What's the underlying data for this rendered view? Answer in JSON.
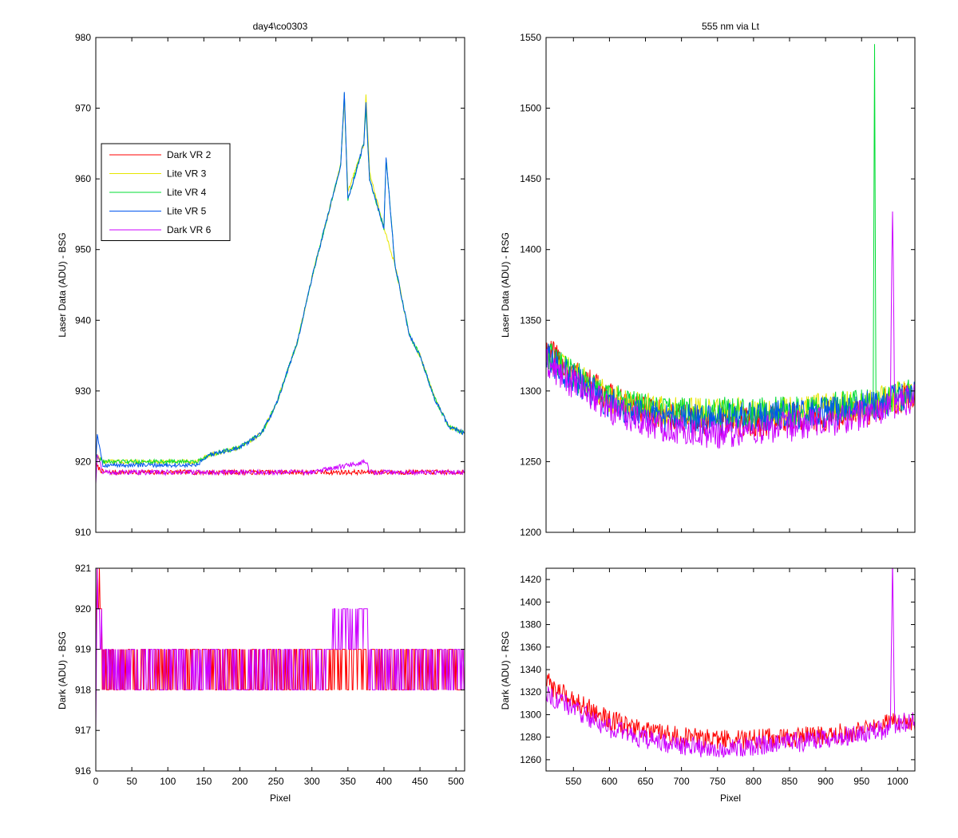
{
  "colors": {
    "dark_vr2": "#ff0000",
    "lite_vr3": "#e6e600",
    "lite_vr4": "#00dd33",
    "lite_vr5": "#0055ee",
    "dark_vr6": "#cc00ff"
  },
  "chart_data": [
    {
      "id": "top-left",
      "type": "line",
      "title": "day4\\co0303",
      "xlabel": "",
      "ylabel": "Laser Data (ADU) - BSG",
      "xlim": [
        0,
        512
      ],
      "ylim": [
        910,
        980
      ],
      "xticks": [
        0,
        50,
        100,
        150,
        200,
        250,
        300,
        350,
        400,
        450,
        500
      ],
      "yticks": [
        910,
        920,
        930,
        940,
        950,
        960,
        970,
        980
      ],
      "show_xtick_labels": false,
      "legend": {
        "position": "upper-left",
        "entries": [
          "Dark VR 2",
          "Lite VR 3",
          "Lite VR 4",
          "Lite VR 5",
          "Dark VR 6"
        ]
      },
      "series": [
        {
          "name": "Dark VR 2",
          "color_key": "dark_vr2",
          "noise": 0.7,
          "x": [
            0,
            10,
            60,
            120,
            200,
            300,
            400,
            450,
            480,
            512
          ],
          "y": [
            919.5,
            918.5,
            918.5,
            918.5,
            918.5,
            918.5,
            918.5,
            918.5,
            918.5,
            918.5
          ]
        },
        {
          "name": "Lite VR 3",
          "color_key": "lite_vr3",
          "noise": 0.6,
          "x": [
            0,
            10,
            140,
            160,
            200,
            230,
            250,
            280,
            300,
            320,
            340,
            345,
            350,
            372,
            375,
            380,
            400,
            415,
            425,
            435,
            450,
            470,
            490,
            512
          ],
          "y": [
            921,
            920,
            920,
            921,
            922,
            924,
            928,
            937,
            946,
            954,
            962,
            971,
            958,
            965,
            972,
            961,
            953,
            948,
            943,
            938,
            935,
            929,
            925,
            924
          ]
        },
        {
          "name": "Lite VR 4",
          "color_key": "lite_vr4",
          "noise": 0.6,
          "x": [
            0,
            10,
            140,
            160,
            200,
            230,
            250,
            280,
            300,
            320,
            340,
            345,
            350,
            372,
            375,
            380,
            400,
            403,
            415,
            425,
            435,
            450,
            470,
            490,
            512
          ],
          "y": [
            921,
            920,
            920,
            921,
            922,
            924,
            928,
            937,
            946,
            954,
            962,
            972,
            957,
            965,
            970,
            960,
            953,
            963,
            948,
            943,
            938,
            935,
            929,
            925,
            924
          ]
        },
        {
          "name": "Lite VR 5",
          "color_key": "lite_vr5",
          "noise": 0.6,
          "x": [
            0,
            2,
            10,
            140,
            160,
            200,
            230,
            250,
            280,
            300,
            320,
            340,
            345,
            350,
            372,
            375,
            380,
            400,
            403,
            415,
            425,
            435,
            450,
            470,
            490,
            512
          ],
          "y": [
            920,
            924,
            919.5,
            919.5,
            921,
            922,
            924,
            928,
            937,
            946,
            954,
            962,
            972,
            957,
            965,
            971,
            960,
            953,
            963,
            948,
            943,
            938,
            935,
            929,
            925,
            924
          ]
        },
        {
          "name": "Dark VR 6",
          "color_key": "dark_vr6",
          "noise": 0.7,
          "x": [
            0,
            2,
            10,
            60,
            120,
            200,
            300,
            376,
            380,
            400,
            450,
            500,
            512
          ],
          "y": [
            917,
            921,
            918.5,
            918.5,
            918.5,
            918.5,
            918.5,
            920,
            918.5,
            918.5,
            918.5,
            918.5,
            918.5
          ]
        }
      ]
    },
    {
      "id": "top-right",
      "type": "line",
      "title": "555 nm via Lt",
      "xlabel": "",
      "ylabel": "Laser Data (ADU) - RSG",
      "xlim": [
        512,
        1024
      ],
      "ylim": [
        1200,
        1550
      ],
      "xticks": [
        550,
        600,
        650,
        700,
        750,
        800,
        850,
        900,
        950,
        1000
      ],
      "yticks": [
        1200,
        1250,
        1300,
        1350,
        1400,
        1450,
        1500,
        1550
      ],
      "show_xtick_labels": false,
      "series": [
        {
          "name": "Dark VR 2",
          "color_key": "dark_vr2",
          "noise": 22,
          "x": [
            512,
            530,
            560,
            600,
            650,
            700,
            750,
            800,
            850,
            900,
            940,
            970,
            1000,
            1024
          ],
          "y": [
            1330,
            1320,
            1310,
            1295,
            1285,
            1280,
            1278,
            1278,
            1280,
            1282,
            1285,
            1288,
            1295,
            1295
          ]
        },
        {
          "name": "Lite VR 3",
          "color_key": "lite_vr3",
          "noise": 22,
          "x": [
            512,
            530,
            560,
            600,
            650,
            700,
            750,
            800,
            850,
            900,
            940,
            970,
            1000,
            1024
          ],
          "y": [
            1325,
            1318,
            1308,
            1295,
            1288,
            1285,
            1285,
            1285,
            1285,
            1288,
            1290,
            1292,
            1296,
            1298
          ]
        },
        {
          "name": "Lite VR 4",
          "color_key": "lite_vr4",
          "noise": 22,
          "x": [
            512,
            530,
            560,
            600,
            650,
            700,
            750,
            800,
            850,
            900,
            940,
            966,
            968,
            970,
            975,
            1000,
            1024
          ],
          "y": [
            1328,
            1318,
            1308,
            1295,
            1288,
            1285,
            1285,
            1285,
            1285,
            1288,
            1290,
            1292,
            1540,
            1292,
            1292,
            1296,
            1298
          ]
        },
        {
          "name": "Lite VR 5",
          "color_key": "lite_vr5",
          "noise": 22,
          "x": [
            512,
            530,
            560,
            600,
            650,
            700,
            750,
            800,
            850,
            900,
            940,
            970,
            1000,
            1024
          ],
          "y": [
            1325,
            1315,
            1305,
            1292,
            1283,
            1280,
            1280,
            1282,
            1283,
            1285,
            1288,
            1290,
            1295,
            1298
          ]
        },
        {
          "name": "Dark VR 6",
          "color_key": "dark_vr6",
          "noise": 22,
          "x": [
            512,
            530,
            560,
            600,
            650,
            700,
            750,
            800,
            850,
            900,
            940,
            990,
            993,
            996,
            1000,
            1024
          ],
          "y": [
            1320,
            1312,
            1302,
            1288,
            1278,
            1272,
            1270,
            1272,
            1275,
            1278,
            1282,
            1288,
            1432,
            1290,
            1292,
            1295
          ]
        }
      ]
    },
    {
      "id": "bottom-left",
      "type": "line",
      "title": "",
      "xlabel": "Pixel",
      "ylabel": "Dark (ADU) - BSG",
      "xlim": [
        0,
        512
      ],
      "ylim": [
        916,
        921
      ],
      "xticks": [
        0,
        50,
        100,
        150,
        200,
        250,
        300,
        350,
        400,
        450,
        500
      ],
      "yticks": [
        916,
        917,
        918,
        919,
        920,
        921
      ],
      "show_xtick_labels": true,
      "series": [
        {
          "name": "Dark VR 2",
          "color_key": "dark_vr2",
          "quantized": true,
          "noise": 0.7,
          "x": [
            0,
            2,
            10,
            60,
            120,
            200,
            300,
            449,
            451,
            490,
            500,
            512
          ],
          "y": [
            918.5,
            921,
            918.5,
            918.5,
            918.5,
            918.5,
            918.5,
            918.5,
            918.5,
            918.5,
            918.5,
            918.5
          ]
        },
        {
          "name": "Dark VR 6",
          "color_key": "dark_vr6",
          "quantized": true,
          "noise": 0.7,
          "x": [
            0,
            2,
            10,
            60,
            120,
            200,
            300,
            376,
            380,
            400,
            450,
            500,
            512
          ],
          "y": [
            917,
            921,
            918.5,
            918.5,
            918.5,
            918.5,
            918.5,
            920,
            918.5,
            918.5,
            918.5,
            918.5,
            918.5
          ]
        }
      ]
    },
    {
      "id": "bottom-right",
      "type": "line",
      "title": "",
      "xlabel": "Pixel",
      "ylabel": "Dark (ADU) - RSG",
      "xlim": [
        512,
        1024
      ],
      "ylim": [
        1250,
        1430
      ],
      "xticks": [
        550,
        600,
        650,
        700,
        750,
        800,
        850,
        900,
        950,
        1000
      ],
      "yticks": [
        1260,
        1280,
        1300,
        1320,
        1340,
        1360,
        1380,
        1400,
        1420
      ],
      "show_xtick_labels": true,
      "series": [
        {
          "name": "Dark VR 2",
          "color_key": "dark_vr2",
          "noise": 18,
          "x": [
            512,
            530,
            560,
            600,
            650,
            700,
            750,
            800,
            850,
            900,
            940,
            970,
            1000,
            1024
          ],
          "y": [
            1330,
            1320,
            1310,
            1295,
            1285,
            1280,
            1278,
            1278,
            1280,
            1282,
            1285,
            1288,
            1295,
            1295
          ]
        },
        {
          "name": "Dark VR 6",
          "color_key": "dark_vr6",
          "noise": 18,
          "x": [
            512,
            530,
            560,
            600,
            650,
            700,
            750,
            800,
            850,
            900,
            940,
            990,
            993,
            996,
            1000,
            1024
          ],
          "y": [
            1320,
            1312,
            1302,
            1288,
            1278,
            1272,
            1270,
            1272,
            1275,
            1278,
            1282,
            1288,
            1432,
            1290,
            1292,
            1295
          ]
        }
      ]
    }
  ]
}
